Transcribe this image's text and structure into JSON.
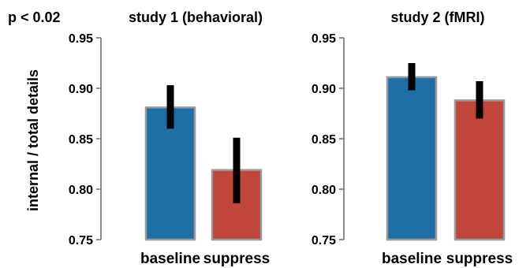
{
  "annotation": "p < 0.02",
  "ylabel": "internal / total details",
  "chart_data": [
    {
      "type": "bar",
      "title": "study 1 (behavioral)",
      "categories": [
        "baseline",
        "suppress"
      ],
      "values": [
        0.881,
        0.819
      ],
      "error_low": [
        0.86,
        0.786
      ],
      "error_high": [
        0.903,
        0.851
      ],
      "colors": [
        "#1f6fa6",
        "#c0463c"
      ],
      "ylim": [
        0.75,
        0.95
      ],
      "yticks": [
        "0.75",
        "0.80",
        "0.85",
        "0.90",
        "0.95"
      ],
      "ytick_values": [
        0.75,
        0.8,
        0.85,
        0.9,
        0.95
      ],
      "ylabel": "internal / total details",
      "xlabel": "",
      "grid": false
    },
    {
      "type": "bar",
      "title": "study 2 (fMRI)",
      "categories": [
        "baseline",
        "suppress"
      ],
      "values": [
        0.911,
        0.888
      ],
      "error_low": [
        0.898,
        0.87
      ],
      "error_high": [
        0.925,
        0.907
      ],
      "colors": [
        "#1f6fa6",
        "#c0463c"
      ],
      "ylim": [
        0.75,
        0.95
      ],
      "yticks": [
        "0.75",
        "0.80",
        "0.85",
        "0.90",
        "0.95"
      ],
      "ytick_values": [
        0.75,
        0.8,
        0.85,
        0.9,
        0.95
      ],
      "ylabel": "",
      "xlabel": "",
      "grid": false
    }
  ]
}
